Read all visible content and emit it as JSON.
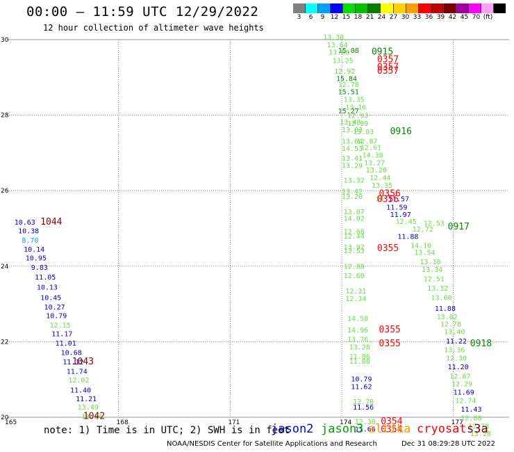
{
  "header": {
    "title": "00:00 – 11:59 UTC 12/29/2022",
    "subtitle": "12 hour collection of altimeter wave heights"
  },
  "legend": {
    "unit": "(ft)",
    "bins": [
      {
        "label": "3",
        "color": "#808080"
      },
      {
        "label": "6",
        "color": "#00ffff"
      },
      {
        "label": "9",
        "color": "#00a0ff"
      },
      {
        "label": "12",
        "color": "#0000ff"
      },
      {
        "label": "15",
        "color": "#00e000"
      },
      {
        "label": "18",
        "color": "#00c000"
      },
      {
        "label": "21",
        "color": "#008000"
      },
      {
        "label": "24",
        "color": "#ffff00"
      },
      {
        "label": "27",
        "color": "#ffd000"
      },
      {
        "label": "30",
        "color": "#ffa000"
      },
      {
        "label": "33",
        "color": "#ff0000"
      },
      {
        "label": "36",
        "color": "#c00000"
      },
      {
        "label": "39",
        "color": "#800000"
      },
      {
        "label": "42",
        "color": "#a000a0"
      },
      {
        "label": "45",
        "color": "#ff00ff"
      },
      {
        "label": "70",
        "color": "#ffa0ff"
      },
      {
        "label": "",
        "color": "#000000"
      }
    ]
  },
  "footer": {
    "note": "note: 1) Time is in UTC; 2) SWH is in feet",
    "missions": [
      {
        "name": "jason2",
        "color": "#0000cc"
      },
      {
        "name": "jason3",
        "color": "#00a000"
      },
      {
        "name": "altika",
        "color": "#ff9900"
      },
      {
        "name": "cryosat",
        "color": "#ff0000"
      },
      {
        "name": "s3a",
        "color": "#800000"
      }
    ],
    "credit": "NOAA/NESDIS Center for Satellite Applications and Research",
    "generated": "Dec 31 08:29:28 UTC 2022"
  },
  "chart_data": {
    "type": "scatter",
    "xlim": [
      165,
      178.5
    ],
    "ylim": [
      20,
      30
    ],
    "x_ticks": [
      165,
      168,
      171,
      174,
      177
    ],
    "x_tick_labels": [
      "165",
      "168",
      "171",
      "174",
      "177"
    ],
    "y_ticks": [
      20,
      22,
      24,
      26,
      28,
      30
    ],
    "y_tick_labels": [
      "20",
      "22",
      "24",
      "26",
      "28",
      "30"
    ],
    "grid": "dotted",
    "colors": {
      "lt": "#66dd44",
      "dg": "#008800",
      "bl": "#0000cc",
      "cy": "#00aaee",
      "rd": "#ff0000",
      "mr": "#880000"
    },
    "series": [
      {
        "name": "jason2",
        "points": [
          {
            "x": 165.2,
            "y": 25.1,
            "v": "10.63",
            "c": "bl"
          },
          {
            "x": 165.3,
            "y": 24.87,
            "v": "10.38",
            "c": "bl"
          },
          {
            "x": 165.4,
            "y": 24.62,
            "v": "8.70",
            "c": "cy"
          },
          {
            "x": 165.45,
            "y": 24.38,
            "v": "10.14",
            "c": "bl"
          },
          {
            "x": 165.5,
            "y": 24.15,
            "v": "10.95",
            "c": "bl"
          },
          {
            "x": 165.65,
            "y": 23.9,
            "v": "9.83",
            "c": "bl"
          },
          {
            "x": 165.75,
            "y": 23.65,
            "v": "11.05",
            "c": "bl"
          },
          {
            "x": 165.8,
            "y": 23.38,
            "v": "10.13",
            "c": "bl"
          },
          {
            "x": 165.9,
            "y": 23.1,
            "v": "10.45",
            "c": "bl"
          },
          {
            "x": 166.0,
            "y": 22.85,
            "v": "10.27",
            "c": "bl"
          },
          {
            "x": 166.05,
            "y": 22.62,
            "v": "10.79",
            "c": "bl"
          },
          {
            "x": 166.15,
            "y": 22.38,
            "v": "12.15",
            "c": "lt"
          },
          {
            "x": 166.2,
            "y": 22.15,
            "v": "11.17",
            "c": "bl"
          },
          {
            "x": 166.3,
            "y": 21.9,
            "v": "11.01",
            "c": "bl"
          },
          {
            "x": 166.45,
            "y": 21.65,
            "v": "10.68",
            "c": "bl"
          },
          {
            "x": 166.5,
            "y": 21.4,
            "v": "11.12",
            "c": "bl"
          },
          {
            "x": 166.6,
            "y": 21.15,
            "v": "11.74",
            "c": "bl"
          },
          {
            "x": 166.65,
            "y": 20.92,
            "v": "12.02",
            "c": "lt"
          },
          {
            "x": 166.7,
            "y": 20.65,
            "v": "11.40",
            "c": "bl"
          },
          {
            "x": 166.85,
            "y": 20.42,
            "v": "11.21",
            "c": "bl"
          },
          {
            "x": 166.9,
            "y": 20.2,
            "v": "13.49",
            "c": "lt"
          },
          {
            "x": 167.0,
            "y": 19.95,
            "v": "13.14",
            "c": "lt"
          },
          {
            "x": 176.2,
            "y": 25.07,
            "v": "12.53",
            "c": "lt"
          },
          {
            "x": 175.9,
            "y": 24.92,
            "v": "12.72",
            "c": "lt"
          },
          {
            "x": 175.5,
            "y": 24.72,
            "v": "11.88",
            "c": "bl"
          },
          {
            "x": 175.85,
            "y": 24.48,
            "v": "14.10",
            "c": "lt"
          },
          {
            "x": 175.95,
            "y": 24.3,
            "v": "13.54",
            "c": "lt"
          },
          {
            "x": 176.1,
            "y": 24.05,
            "v": "13.10",
            "c": "lt"
          },
          {
            "x": 176.15,
            "y": 23.85,
            "v": "13.34",
            "c": "lt"
          },
          {
            "x": 176.2,
            "y": 23.6,
            "v": "12.51",
            "c": "lt"
          },
          {
            "x": 176.3,
            "y": 23.35,
            "v": "13.32",
            "c": "lt"
          },
          {
            "x": 176.4,
            "y": 23.1,
            "v": "13.60",
            "c": "lt"
          },
          {
            "x": 176.5,
            "y": 22.82,
            "v": "11.88",
            "c": "bl"
          },
          {
            "x": 176.55,
            "y": 22.6,
            "v": "13.82",
            "c": "lt"
          },
          {
            "x": 176.65,
            "y": 22.4,
            "v": "12.78",
            "c": "lt"
          },
          {
            "x": 176.75,
            "y": 22.2,
            "v": "13.40",
            "c": "lt"
          },
          {
            "x": 176.8,
            "y": 21.95,
            "v": "11.22",
            "c": "bl"
          },
          {
            "x": 176.75,
            "y": 21.72,
            "v": "13.36",
            "c": "lt"
          },
          {
            "x": 176.8,
            "y": 21.5,
            "v": "12.30",
            "c": "lt"
          },
          {
            "x": 176.85,
            "y": 21.27,
            "v": "11.20",
            "c": "bl"
          },
          {
            "x": 176.9,
            "y": 21.02,
            "v": "12.87",
            "c": "lt"
          },
          {
            "x": 176.95,
            "y": 20.82,
            "v": "12.29",
            "c": "lt"
          },
          {
            "x": 177.0,
            "y": 20.6,
            "v": "11.69",
            "c": "bl"
          },
          {
            "x": 177.05,
            "y": 20.38,
            "v": "12.74",
            "c": "lt"
          },
          {
            "x": 177.2,
            "y": 20.15,
            "v": "11.43",
            "c": "bl"
          },
          {
            "x": 177.2,
            "y": 19.92,
            "v": "12.80",
            "c": "lt"
          },
          {
            "x": 177.4,
            "y": 19.7,
            "v": "12.78",
            "c": "lt"
          },
          {
            "x": 177.45,
            "y": 19.5,
            "v": "13.28",
            "c": "lt"
          }
        ]
      },
      {
        "name": "jason3",
        "points": [
          {
            "x": 173.5,
            "y": 30.0,
            "v": "13.30",
            "c": "lt"
          },
          {
            "x": 173.6,
            "y": 29.8,
            "v": "13.64",
            "c": "lt"
          },
          {
            "x": 173.65,
            "y": 29.6,
            "v": "13.66",
            "c": "lt"
          },
          {
            "x": 173.9,
            "y": 29.65,
            "v": "15.08",
            "c": "dg"
          },
          {
            "x": 173.75,
            "y": 29.38,
            "v": "13.25",
            "c": "lt"
          },
          {
            "x": 173.8,
            "y": 29.1,
            "v": "12.92",
            "c": "lt"
          },
          {
            "x": 173.85,
            "y": 28.9,
            "v": "15.84",
            "c": "dg"
          },
          {
            "x": 173.9,
            "y": 28.75,
            "v": "12.78",
            "c": "lt"
          },
          {
            "x": 173.9,
            "y": 28.55,
            "v": "15.51",
            "c": "dg"
          },
          {
            "x": 174.05,
            "y": 28.35,
            "v": "13.35",
            "c": "lt"
          },
          {
            "x": 174.1,
            "y": 28.15,
            "v": "13.16",
            "c": "lt"
          },
          {
            "x": 173.9,
            "y": 28.05,
            "v": "15.27",
            "c": "dg"
          },
          {
            "x": 174.15,
            "y": 27.93,
            "v": "12.93",
            "c": "lt"
          },
          {
            "x": 173.95,
            "y": 27.75,
            "v": "13.48",
            "c": "lt"
          },
          {
            "x": 174.15,
            "y": 27.72,
            "v": "12.99",
            "c": "lt"
          },
          {
            "x": 174.0,
            "y": 27.55,
            "v": "13.03",
            "c": "lt"
          },
          {
            "x": 174.3,
            "y": 27.5,
            "v": "13.03",
            "c": "lt"
          },
          {
            "x": 174.0,
            "y": 27.25,
            "v": "13.64",
            "c": "lt"
          },
          {
            "x": 174.4,
            "y": 27.25,
            "v": "12.87",
            "c": "lt"
          },
          {
            "x": 174.5,
            "y": 27.08,
            "v": "12.61",
            "c": "lt"
          },
          {
            "x": 174.0,
            "y": 27.05,
            "v": "14.53",
            "c": "lt"
          },
          {
            "x": 174.55,
            "y": 26.88,
            "v": "14.38",
            "c": "lt"
          },
          {
            "x": 174.0,
            "y": 26.8,
            "v": "13.41",
            "c": "lt"
          },
          {
            "x": 174.6,
            "y": 26.68,
            "v": "13.27",
            "c": "lt"
          },
          {
            "x": 174.0,
            "y": 26.6,
            "v": "13.29",
            "c": "lt"
          },
          {
            "x": 174.65,
            "y": 26.48,
            "v": "13.20",
            "c": "lt"
          },
          {
            "x": 174.75,
            "y": 26.28,
            "v": "12.44",
            "c": "lt"
          },
          {
            "x": 174.05,
            "y": 26.22,
            "v": "13.32",
            "c": "lt"
          },
          {
            "x": 174.8,
            "y": 26.08,
            "v": "13.35",
            "c": "lt"
          },
          {
            "x": 174.0,
            "y": 25.92,
            "v": "13.42",
            "c": "lt"
          },
          {
            "x": 174.0,
            "y": 25.78,
            "v": "13.20",
            "c": "lt"
          },
          {
            "x": 174.9,
            "y": 25.72,
            "v": "14",
            "c": "lt"
          },
          {
            "x": 174.05,
            "y": 25.38,
            "v": "13.07",
            "c": "lt"
          },
          {
            "x": 174.05,
            "y": 25.2,
            "v": "14.02",
            "c": "lt"
          },
          {
            "x": 174.05,
            "y": 24.85,
            "v": "12.68",
            "c": "lt"
          },
          {
            "x": 174.05,
            "y": 24.73,
            "v": "12.44",
            "c": "lt"
          },
          {
            "x": 174.05,
            "y": 24.45,
            "v": "13.92",
            "c": "lt"
          },
          {
            "x": 174.05,
            "y": 24.35,
            "v": "13.53",
            "c": "lt"
          },
          {
            "x": 174.05,
            "y": 23.93,
            "v": "12.88",
            "c": "lt"
          },
          {
            "x": 174.05,
            "y": 23.68,
            "v": "12.60",
            "c": "lt"
          },
          {
            "x": 174.1,
            "y": 23.28,
            "v": "12.31",
            "c": "lt"
          },
          {
            "x": 174.1,
            "y": 23.08,
            "v": "12.34",
            "c": "lt"
          },
          {
            "x": 174.15,
            "y": 22.55,
            "v": "14.58",
            "c": "lt"
          },
          {
            "x": 174.15,
            "y": 22.25,
            "v": "14.96",
            "c": "lt"
          },
          {
            "x": 174.15,
            "y": 22.0,
            "v": "13.76",
            "c": "lt"
          },
          {
            "x": 174.2,
            "y": 21.8,
            "v": "13.28",
            "c": "lt"
          },
          {
            "x": 174.2,
            "y": 21.55,
            "v": "11.86",
            "c": "lt"
          },
          {
            "x": 174.2,
            "y": 21.42,
            "v": "11.88",
            "c": "lt"
          },
          {
            "x": 174.25,
            "y": 20.95,
            "v": "10.79",
            "c": "bl"
          },
          {
            "x": 174.25,
            "y": 20.75,
            "v": "11.62",
            "c": "bl"
          },
          {
            "x": 174.3,
            "y": 20.35,
            "v": "12.70",
            "c": "lt"
          },
          {
            "x": 174.3,
            "y": 20.2,
            "v": "11.56",
            "c": "bl"
          },
          {
            "x": 174.35,
            "y": 19.82,
            "v": "12.30",
            "c": "lt"
          },
          {
            "x": 174.35,
            "y": 19.62,
            "v": "11.66",
            "c": "bl"
          },
          {
            "x": 175.25,
            "y": 25.72,
            "v": "11.57",
            "c": "bl"
          },
          {
            "x": 175.2,
            "y": 25.5,
            "v": "11.59",
            "c": "bl"
          },
          {
            "x": 175.3,
            "y": 25.3,
            "v": "11.97",
            "c": "bl"
          },
          {
            "x": 175.45,
            "y": 25.12,
            "v": "12.45",
            "c": "lt"
          }
        ]
      },
      {
        "name": "times",
        "points": [
          {
            "x": 174.8,
            "y": 29.6,
            "v": "0915",
            "c": "dg"
          },
          {
            "x": 174.95,
            "y": 29.4,
            "v": "0357",
            "c": "rd"
          },
          {
            "x": 174.95,
            "y": 29.2,
            "v": "0357",
            "c": "rd"
          },
          {
            "x": 174.95,
            "y": 29.1,
            "v": "0357",
            "c": "rd"
          },
          {
            "x": 175.3,
            "y": 27.5,
            "v": "0916",
            "c": "dg"
          },
          {
            "x": 175.0,
            "y": 25.85,
            "v": "0356",
            "c": "rd"
          },
          {
            "x": 174.95,
            "y": 25.7,
            "v": "0356",
            "c": "rd"
          },
          {
            "x": 176.85,
            "y": 24.97,
            "v": "0917",
            "c": "dg"
          },
          {
            "x": 174.95,
            "y": 24.4,
            "v": "0355",
            "c": "rd"
          },
          {
            "x": 175.0,
            "y": 22.25,
            "v": "0355",
            "c": "rd"
          },
          {
            "x": 175.0,
            "y": 21.88,
            "v": "0355",
            "c": "rd"
          },
          {
            "x": 177.45,
            "y": 21.88,
            "v": "0918",
            "c": "dg"
          },
          {
            "x": 175.05,
            "y": 19.82,
            "v": "0354",
            "c": "rd"
          },
          {
            "x": 175.05,
            "y": 19.6,
            "v": "0354",
            "c": "rd"
          },
          {
            "x": 165.9,
            "y": 25.1,
            "v": "1044",
            "c": "mr"
          },
          {
            "x": 166.75,
            "y": 21.4,
            "v": "1043",
            "c": "mr"
          },
          {
            "x": 167.05,
            "y": 19.95,
            "v": "1042",
            "c": "mr"
          }
        ]
      }
    ]
  }
}
